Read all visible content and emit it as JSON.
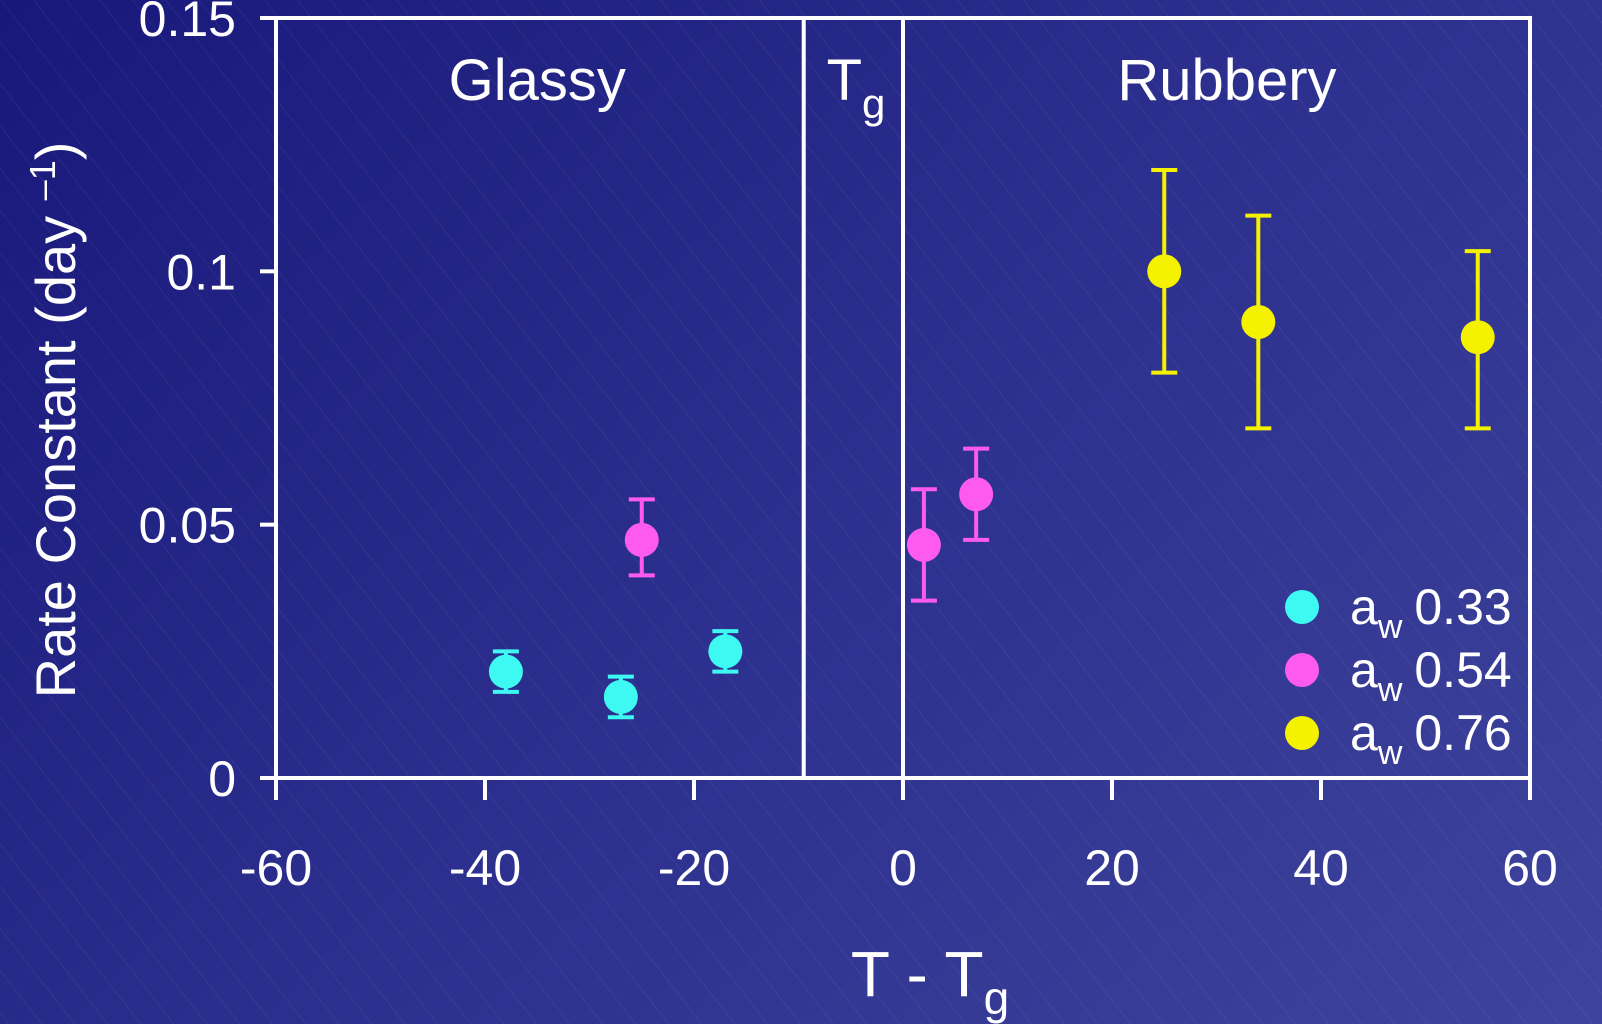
{
  "chart_data": {
    "type": "scatter",
    "title": "",
    "xlabel": "T - T",
    "xlabel_sub": "g",
    "ylabel": "Rate Constant (day",
    "ylabel_sup": "–1",
    "ylabel_close": ")",
    "xlim": [
      -60,
      60
    ],
    "ylim": [
      0,
      0.15
    ],
    "x_ticks": [
      -60,
      -40,
      -20,
      0,
      20,
      40,
      60
    ],
    "x_tick_labels": [
      "-60",
      "-40",
      "-20",
      "0",
      "20",
      "40",
      "60"
    ],
    "y_ticks": [
      0,
      0.05,
      0.1,
      0.15
    ],
    "y_tick_labels": [
      "0",
      "0.05",
      "0.1",
      "0.15"
    ],
    "grid": false,
    "legend_position": "bottom-right",
    "region_boundaries": [
      -9.5,
      0
    ],
    "regions": [
      {
        "label": "Glassy",
        "sub": "",
        "x": -35
      },
      {
        "label": "T",
        "sub": "g",
        "x": -4.5
      },
      {
        "label": "Rubbery",
        "sub": "",
        "x": 31
      }
    ],
    "series": [
      {
        "name": "a",
        "name_sub": "w",
        "name_value": "0.33",
        "color": "#3ef8f2",
        "points": [
          {
            "x": -38,
            "y": 0.021,
            "err_lo": 0.017,
            "err_hi": 0.025
          },
          {
            "x": -27,
            "y": 0.016,
            "err_lo": 0.012,
            "err_hi": 0.02
          },
          {
            "x": -17,
            "y": 0.025,
            "err_lo": 0.021,
            "err_hi": 0.029
          }
        ]
      },
      {
        "name": "a",
        "name_sub": "w",
        "name_value": "0.54",
        "color": "#ff5aef",
        "points": [
          {
            "x": -25,
            "y": 0.047,
            "err_lo": 0.04,
            "err_hi": 0.055
          },
          {
            "x": 2,
            "y": 0.046,
            "err_lo": 0.035,
            "err_hi": 0.057
          },
          {
            "x": 7,
            "y": 0.056,
            "err_lo": 0.047,
            "err_hi": 0.065
          }
        ]
      },
      {
        "name": "a",
        "name_sub": "w",
        "name_value": "0.76",
        "color": "#f5f200",
        "points": [
          {
            "x": 25,
            "y": 0.1,
            "err_lo": 0.08,
            "err_hi": 0.12
          },
          {
            "x": 34,
            "y": 0.09,
            "err_lo": 0.069,
            "err_hi": 0.111
          },
          {
            "x": 55,
            "y": 0.087,
            "err_lo": 0.069,
            "err_hi": 0.104
          }
        ]
      }
    ]
  }
}
